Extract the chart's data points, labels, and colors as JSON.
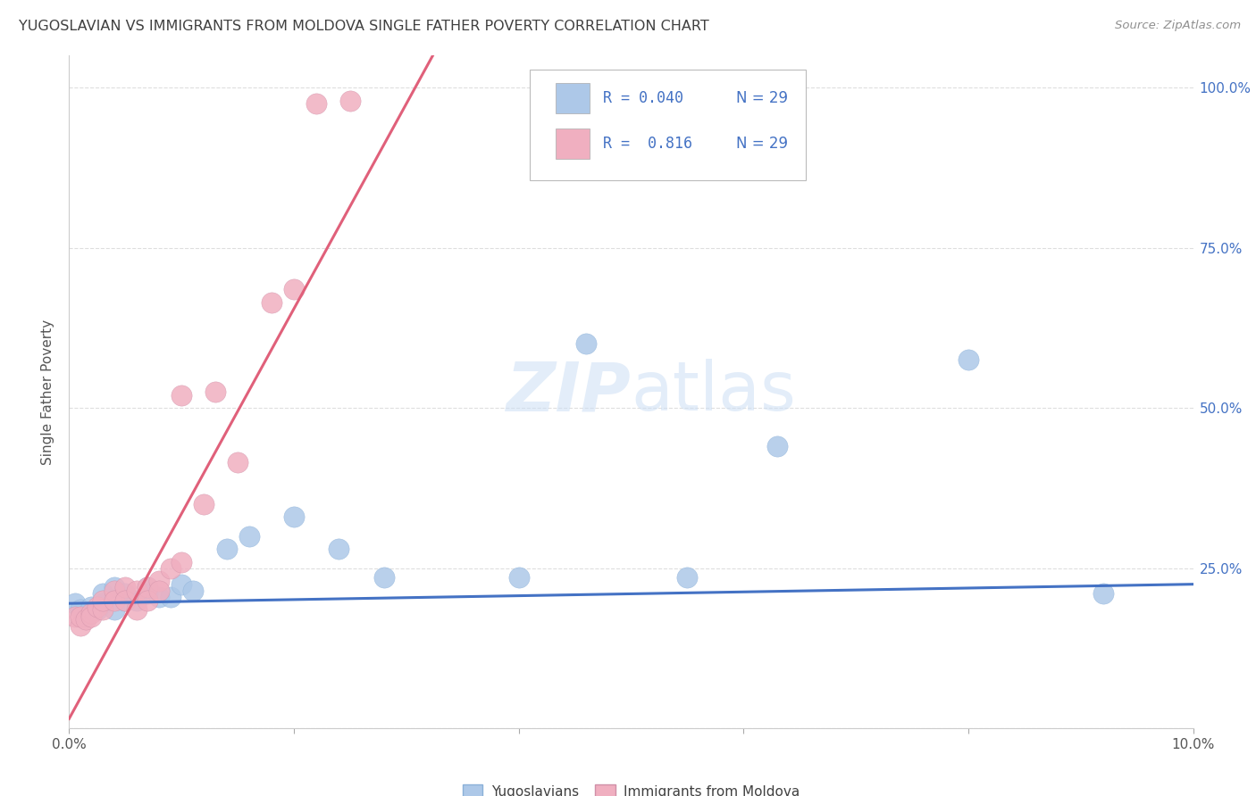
{
  "title": "YUGOSLAVIAN VS IMMIGRANTS FROM MOLDOVA SINGLE FATHER POVERTY CORRELATION CHART",
  "source": "Source: ZipAtlas.com",
  "ylabel": "Single Father Poverty",
  "yug_color": "#adc8e8",
  "mold_color": "#f0afc0",
  "yug_line_color": "#4472c4",
  "mold_line_color": "#e0607a",
  "title_color": "#404040",
  "source_color": "#909090",
  "legend_text_color": "#4472c4",
  "legend_r1": "R = 0.040",
  "legend_r2": "R =  0.816",
  "legend_n": "N = 29",
  "yug_x": [
    0.0005,
    0.001,
    0.0015,
    0.002,
    0.0025,
    0.003,
    0.003,
    0.004,
    0.004,
    0.005,
    0.005,
    0.006,
    0.007,
    0.007,
    0.008,
    0.009,
    0.01,
    0.011,
    0.014,
    0.016,
    0.02,
    0.024,
    0.028,
    0.04,
    0.046,
    0.055,
    0.063,
    0.08,
    0.092
  ],
  "yug_y": [
    0.195,
    0.185,
    0.175,
    0.19,
    0.185,
    0.195,
    0.21,
    0.185,
    0.22,
    0.2,
    0.21,
    0.2,
    0.21,
    0.22,
    0.205,
    0.205,
    0.225,
    0.215,
    0.28,
    0.3,
    0.33,
    0.28,
    0.235,
    0.235,
    0.6,
    0.235,
    0.44,
    0.575,
    0.21
  ],
  "mold_x": [
    0.0005,
    0.001,
    0.001,
    0.0015,
    0.002,
    0.002,
    0.0025,
    0.003,
    0.003,
    0.004,
    0.004,
    0.005,
    0.005,
    0.006,
    0.006,
    0.007,
    0.007,
    0.008,
    0.008,
    0.009,
    0.01,
    0.01,
    0.012,
    0.013,
    0.015,
    0.018,
    0.02,
    0.022,
    0.025
  ],
  "mold_y": [
    0.175,
    0.16,
    0.175,
    0.17,
    0.18,
    0.175,
    0.19,
    0.185,
    0.2,
    0.215,
    0.2,
    0.22,
    0.2,
    0.215,
    0.185,
    0.22,
    0.2,
    0.23,
    0.215,
    0.25,
    0.26,
    0.52,
    0.35,
    0.525,
    0.415,
    0.665,
    0.685,
    0.975,
    0.98
  ],
  "xlim": [
    0.0,
    0.1
  ],
  "ylim": [
    0.0,
    1.05
  ],
  "ytick_positions": [
    0.0,
    0.25,
    0.5,
    0.75,
    1.0
  ],
  "ytick_labels": [
    "",
    "25.0%",
    "50.0%",
    "75.0%",
    "100.0%"
  ],
  "bg_color": "#ffffff",
  "grid_color": "#dedede"
}
